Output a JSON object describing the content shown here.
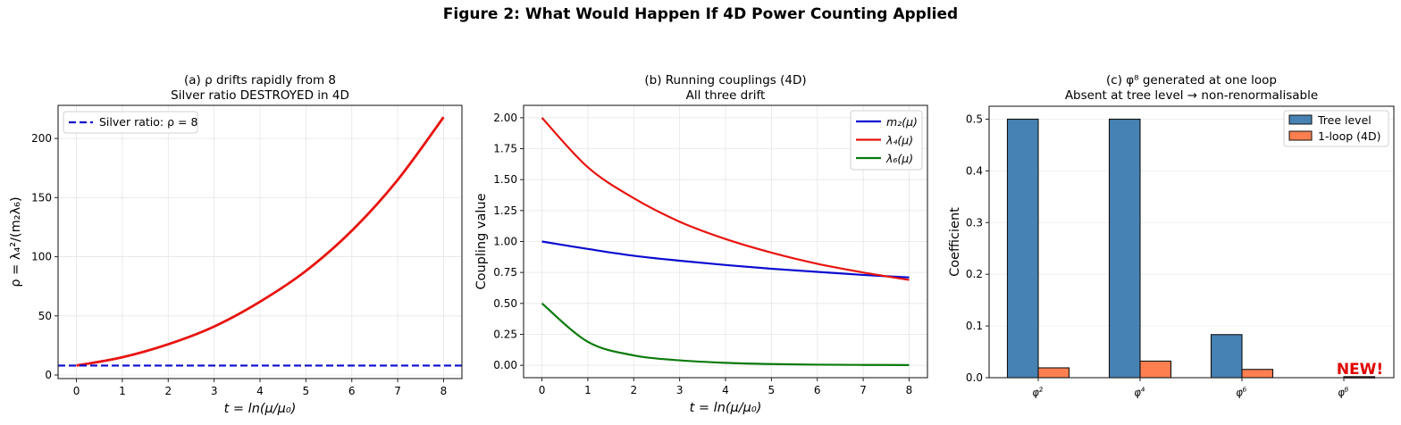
{
  "figure": {
    "title": "Figure 2: What Would Happen If 4D Power Counting Applied"
  },
  "panels": {
    "a": {
      "title_line1": "(a) ρ drifts rapidly from 8",
      "title_line2": "Silver ratio DESTROYED in 4D",
      "xlabel": "t = ln(μ/μ₀)",
      "ylabel": "ρ = λ₄²/(m₂λ₆)",
      "legend": [
        "Silver ratio: ρ = 8"
      ]
    },
    "b": {
      "title_line1": "(b) Running couplings (4D)",
      "title_line2": "All three drift",
      "xlabel": "t = ln(μ/μ₀)",
      "ylabel": "Coupling value",
      "legend": [
        "m₂(μ)",
        "λ₄(μ)",
        "λ₆(μ)"
      ]
    },
    "c": {
      "title_line1": "(c) φ⁸ generated at one loop",
      "title_line2": "Absent at tree level → non-renormalisable",
      "ylabel": "Coefficient",
      "legend": [
        "Tree level",
        "1-loop (4D)"
      ],
      "annotation": "NEW!"
    }
  },
  "colors": {
    "red": "#e8130f",
    "blue": "#0a0ad0",
    "green": "#0a7a0a",
    "tree": "#4682b4",
    "loop": "#ff7f50",
    "annotation": "#e00000",
    "grid": "#e6e6e6"
  },
  "chart_data": [
    {
      "type": "line",
      "title": "(a) ρ drifts rapidly from 8 / Silver ratio DESTROYED in 4D",
      "xlabel": "t = ln(μ/μ₀)",
      "ylabel": "ρ = λ₄²/(m₂λ₆)",
      "x": [
        0,
        1,
        2,
        3,
        4,
        5,
        6,
        7,
        8
      ],
      "series": [
        {
          "name": "ρ(t)",
          "color": "#e8130f",
          "values": [
            8,
            15,
            26,
            41,
            62,
            88,
            122,
            165,
            218
          ]
        },
        {
          "name": "Silver ratio: ρ = 8",
          "color": "#0a0ad0",
          "style": "dashed",
          "values": [
            8,
            8,
            8,
            8,
            8,
            8,
            8,
            8,
            8
          ]
        }
      ],
      "xlim": [
        -0.4,
        8.4
      ],
      "ylim": [
        -3,
        228
      ],
      "xticks": [
        0,
        1,
        2,
        3,
        4,
        5,
        6,
        7,
        8
      ],
      "yticks": [
        0,
        50,
        100,
        150,
        200
      ],
      "grid": true,
      "legend_position": "upper left"
    },
    {
      "type": "line",
      "title": "(b) Running couplings (4D) / All three drift",
      "xlabel": "t = ln(μ/μ₀)",
      "ylabel": "Coupling value",
      "x": [
        0,
        1,
        2,
        3,
        4,
        5,
        6,
        7,
        8
      ],
      "series": [
        {
          "name": "m₂(μ)",
          "color": "#0a0ad0",
          "values": [
            1.0,
            0.94,
            0.885,
            0.845,
            0.81,
            0.78,
            0.755,
            0.73,
            0.71
          ]
        },
        {
          "name": "λ₄(μ)",
          "color": "#e8130f",
          "values": [
            2.0,
            1.6,
            1.35,
            1.16,
            1.02,
            0.91,
            0.82,
            0.75,
            0.69
          ]
        },
        {
          "name": "λ₆(μ)",
          "color": "#0a7a0a",
          "values": [
            0.5,
            0.19,
            0.08,
            0.04,
            0.02,
            0.01,
            0.005,
            0.003,
            0.002
          ]
        }
      ],
      "xlim": [
        -0.4,
        8.4
      ],
      "ylim": [
        -0.1,
        2.1
      ],
      "xticks": [
        0,
        1,
        2,
        3,
        4,
        5,
        6,
        7,
        8
      ],
      "yticks": [
        0.0,
        0.25,
        0.5,
        0.75,
        1.0,
        1.25,
        1.5,
        1.75,
        2.0
      ],
      "grid": true,
      "legend_position": "upper right"
    },
    {
      "type": "bar",
      "title": "(c) φ⁸ generated at one loop / Absent at tree level → non-renormalisable",
      "xlabel": "",
      "ylabel": "Coefficient",
      "categories": [
        "φ²",
        "φ⁴",
        "φ⁶",
        "φ⁸"
      ],
      "series": [
        {
          "name": "Tree level",
          "color": "#4682b4",
          "values": [
            0.5,
            0.5,
            0.0833,
            0.0
          ]
        },
        {
          "name": "1-loop (4D)",
          "color": "#ff7f50",
          "values": [
            0.019,
            0.032,
            0.016,
            0.002
          ]
        }
      ],
      "ylim": [
        0,
        0.525
      ],
      "yticks": [
        0.0,
        0.1,
        0.2,
        0.3,
        0.4,
        0.5
      ],
      "annotations": [
        {
          "text": "NEW!",
          "category": "φ⁸",
          "color": "#e00000"
        }
      ],
      "grid": true,
      "legend_position": "upper right"
    }
  ]
}
